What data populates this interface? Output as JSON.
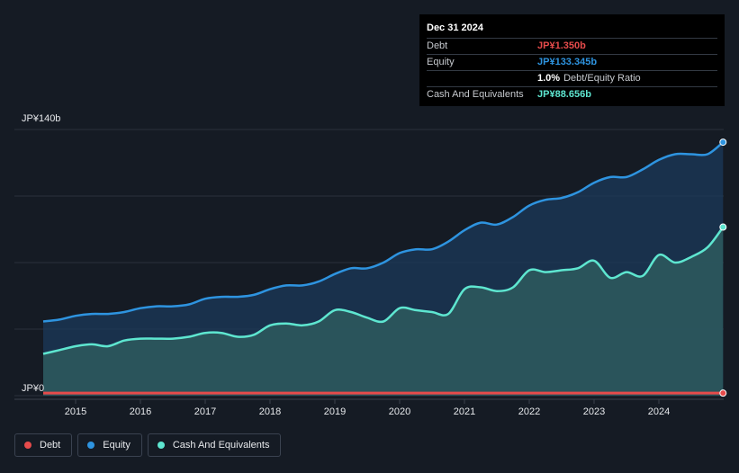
{
  "colors": {
    "background": "#151b24",
    "debt": "#e64b4b",
    "equity": "#2e94e0",
    "cash": "#5ee6d0",
    "gridline": "#2b323d"
  },
  "tooltip": {
    "date": "Dec 31 2024",
    "rows": [
      {
        "label": "Debt",
        "value": "JP¥1.350b",
        "color": "#e64b4b"
      },
      {
        "label": "Equity",
        "value": "JP¥133.345b",
        "color": "#2e94e0"
      },
      {
        "label": "",
        "value": "1.0%",
        "suffix": "Debt/Equity Ratio",
        "color": "#ffffff"
      },
      {
        "label": "Cash And Equivalents",
        "value": "JP¥88.656b",
        "color": "#5ee6d0"
      }
    ]
  },
  "legend": [
    {
      "label": "Debt",
      "color": "#e64b4b",
      "icon": "dot-icon"
    },
    {
      "label": "Equity",
      "color": "#2e94e0",
      "icon": "dot-icon"
    },
    {
      "label": "Cash And Equivalents",
      "color": "#5ee6d0",
      "icon": "dot-icon"
    }
  ],
  "chart_data": {
    "type": "area",
    "y_top_label": "JP¥140b",
    "y_bottom_label": "JP¥0",
    "ylim": [
      0,
      140
    ],
    "xlim": [
      2014.5,
      2025.0
    ],
    "x_ticks": [
      "2015",
      "2016",
      "2017",
      "2018",
      "2019",
      "2020",
      "2021",
      "2022",
      "2023",
      "2024"
    ],
    "x_tick_values": [
      2015,
      2016,
      2017,
      2018,
      2019,
      2020,
      2021,
      2022,
      2023,
      2024
    ],
    "grid": true,
    "legend_position": "bottom-left",
    "series": [
      {
        "name": "Equity",
        "color": "#2e94e0",
        "fill": true,
        "x": [
          2014.5,
          2014.75,
          2015.0,
          2015.25,
          2015.5,
          2015.75,
          2016.0,
          2016.25,
          2016.5,
          2016.75,
          2017.0,
          2017.25,
          2017.5,
          2017.75,
          2018.0,
          2018.25,
          2018.5,
          2018.75,
          2019.0,
          2019.25,
          2019.5,
          2019.75,
          2020.0,
          2020.25,
          2020.5,
          2020.75,
          2021.0,
          2021.25,
          2021.5,
          2021.75,
          2022.0,
          2022.25,
          2022.5,
          2022.75,
          2023.0,
          2023.25,
          2023.5,
          2023.75,
          2024.0,
          2024.25,
          2024.5,
          2024.75,
          2024.99
        ],
        "values": [
          39,
          40,
          42,
          43,
          43,
          44,
          46,
          47,
          47,
          48,
          51,
          52,
          52,
          53,
          56,
          58,
          58,
          60,
          64,
          67,
          67,
          70,
          75,
          77,
          77,
          81,
          87,
          91,
          90,
          94,
          100,
          103,
          104,
          107,
          112,
          115,
          115,
          119,
          124,
          127,
          127,
          127,
          133.345
        ]
      },
      {
        "name": "Cash And Equivalents",
        "color": "#5ee6d0",
        "fill": true,
        "x": [
          2014.5,
          2014.75,
          2015.0,
          2015.25,
          2015.5,
          2015.75,
          2016.0,
          2016.25,
          2016.5,
          2016.75,
          2017.0,
          2017.25,
          2017.5,
          2017.75,
          2018.0,
          2018.25,
          2018.5,
          2018.75,
          2019.0,
          2019.25,
          2019.5,
          2019.75,
          2020.0,
          2020.25,
          2020.5,
          2020.75,
          2021.0,
          2021.25,
          2021.5,
          2021.75,
          2022.0,
          2022.25,
          2022.5,
          2022.75,
          2023.0,
          2023.25,
          2023.5,
          2023.75,
          2024.0,
          2024.25,
          2024.5,
          2024.75,
          2024.99
        ],
        "values": [
          22,
          24,
          26,
          27,
          26,
          29,
          30,
          30,
          30,
          31,
          33,
          33,
          31,
          32,
          37,
          38,
          37,
          39,
          45,
          44,
          41,
          39,
          46,
          45,
          44,
          43,
          56,
          57,
          55,
          57,
          66,
          65,
          66,
          67,
          71,
          62,
          65,
          63,
          74,
          70,
          73,
          78,
          88.656
        ]
      },
      {
        "name": "Debt",
        "color": "#e64b4b",
        "fill": false,
        "x": [
          2014.5,
          2024.99
        ],
        "values": [
          1.35,
          1.35
        ]
      }
    ]
  }
}
